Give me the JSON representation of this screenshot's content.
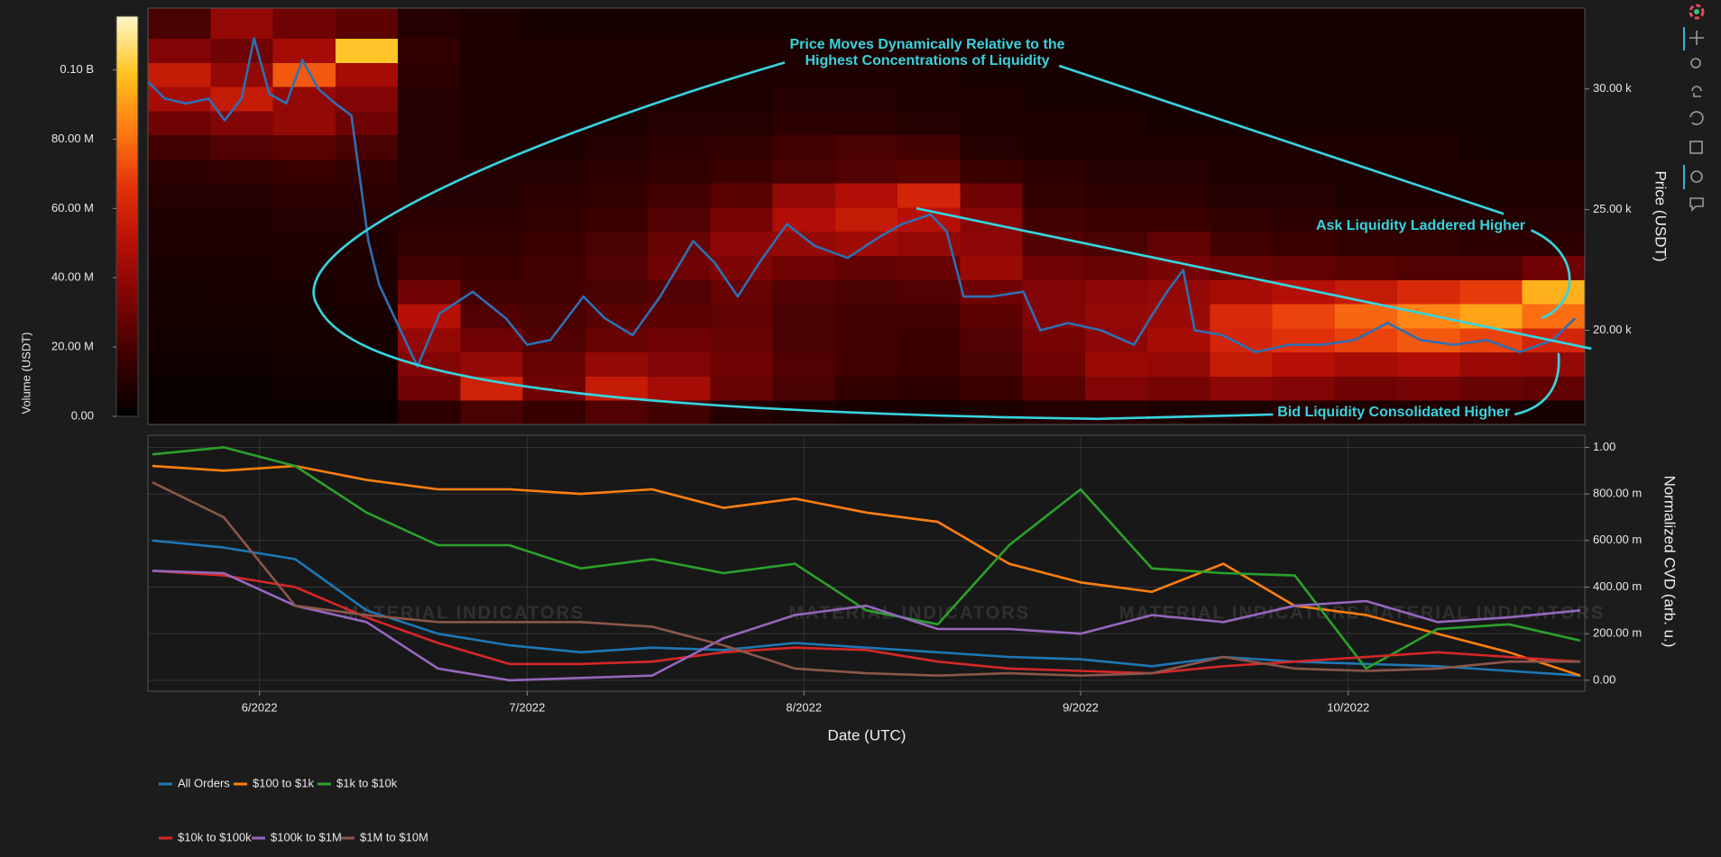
{
  "chart_data": [
    {
      "type": "heatmap",
      "xlim": [
        139.5,
        300.5
      ],
      "ylim": [
        16100,
        33350
      ],
      "yticks": [
        {
          "value": 20000,
          "label": "20.00 k"
        },
        {
          "value": 25000,
          "label": "25.00 k"
        },
        {
          "value": 30000,
          "label": "30.00 k"
        }
      ],
      "ylabel": "Price (USDT)",
      "x_bins": [
        139.5,
        146.5,
        153.5,
        160.5,
        167.5,
        174.5,
        181.5,
        188.5,
        195.5,
        202.5,
        209.5,
        216.5,
        223.5,
        230.5,
        237.5,
        244.5,
        251.5,
        258.5,
        265.5,
        272.5,
        279.5,
        286.5,
        293.5,
        300.5
      ],
      "y_bins": [
        16100,
        17100,
        18100,
        19100,
        20100,
        21100,
        22100,
        23100,
        24100,
        25100,
        26100,
        27100,
        28100,
        29100,
        30100,
        31100,
        32100,
        33350
      ],
      "z": [
        [
          3,
          3,
          3,
          3,
          12,
          20,
          15,
          22,
          18,
          10,
          8,
          6,
          6,
          8,
          10,
          10,
          8,
          8,
          10,
          8,
          8,
          8,
          6
        ],
        [
          3,
          3,
          4,
          4,
          30,
          58,
          30,
          55,
          45,
          28,
          20,
          14,
          12,
          16,
          24,
          35,
          32,
          38,
          35,
          30,
          32,
          28,
          26
        ],
        [
          4,
          4,
          5,
          5,
          35,
          40,
          28,
          40,
          35,
          30,
          22,
          18,
          16,
          20,
          30,
          42,
          40,
          55,
          50,
          45,
          48,
          42,
          40
        ],
        [
          5,
          5,
          6,
          6,
          40,
          30,
          22,
          28,
          30,
          28,
          20,
          18,
          16,
          22,
          32,
          38,
          45,
          60,
          65,
          70,
          75,
          70,
          60
        ],
        [
          6,
          6,
          6,
          7,
          50,
          22,
          20,
          24,
          25,
          26,
          20,
          18,
          18,
          25,
          35,
          40,
          42,
          62,
          70,
          78,
          85,
          92,
          80
        ],
        [
          6,
          7,
          7,
          8,
          30,
          18,
          18,
          20,
          22,
          28,
          22,
          20,
          22,
          30,
          35,
          38,
          40,
          45,
          50,
          55,
          62,
          68,
          95
        ],
        [
          7,
          7,
          8,
          8,
          18,
          16,
          18,
          22,
          30,
          34,
          30,
          26,
          28,
          42,
          30,
          28,
          32,
          28,
          26,
          24,
          22,
          22,
          30
        ],
        [
          8,
          8,
          9,
          9,
          14,
          14,
          16,
          20,
          28,
          38,
          40,
          44,
          40,
          38,
          22,
          20,
          26,
          18,
          16,
          14,
          14,
          12,
          12
        ],
        [
          8,
          9,
          10,
          10,
          12,
          12,
          14,
          16,
          22,
          32,
          48,
          55,
          50,
          36,
          18,
          16,
          16,
          14,
          12,
          10,
          10,
          10,
          10
        ],
        [
          10,
          10,
          12,
          12,
          10,
          10,
          12,
          14,
          18,
          24,
          40,
          48,
          60,
          30,
          14,
          12,
          12,
          10,
          10,
          8,
          8,
          8,
          8
        ],
        [
          12,
          14,
          16,
          14,
          10,
          10,
          10,
          12,
          14,
          16,
          20,
          22,
          24,
          16,
          12,
          10,
          10,
          8,
          8,
          8,
          8,
          8,
          8
        ],
        [
          18,
          22,
          24,
          20,
          10,
          8,
          8,
          10,
          12,
          14,
          18,
          20,
          18,
          10,
          8,
          8,
          8,
          8,
          8,
          8,
          8,
          6,
          6
        ],
        [
          30,
          35,
          40,
          30,
          10,
          8,
          8,
          8,
          10,
          10,
          12,
          12,
          10,
          8,
          8,
          8,
          6,
          6,
          6,
          6,
          6,
          6,
          6
        ],
        [
          45,
          55,
          40,
          35,
          10,
          8,
          8,
          8,
          8,
          8,
          10,
          10,
          8,
          8,
          6,
          6,
          6,
          6,
          6,
          6,
          6,
          6,
          6
        ],
        [
          55,
          40,
          75,
          45,
          12,
          8,
          8,
          8,
          8,
          8,
          8,
          8,
          8,
          6,
          6,
          6,
          6,
          6,
          6,
          6,
          6,
          6,
          6
        ],
        [
          35,
          30,
          45,
          100,
          14,
          8,
          8,
          8,
          8,
          8,
          8,
          8,
          8,
          6,
          6,
          6,
          6,
          6,
          6,
          6,
          6,
          6,
          6
        ],
        [
          20,
          40,
          30,
          25,
          10,
          8,
          6,
          6,
          6,
          6,
          6,
          6,
          6,
          6,
          6,
          6,
          6,
          6,
          6,
          6,
          6,
          6,
          6
        ]
      ],
      "colorbar": {
        "title": "Volume (USDT)",
        "lim": [
          0,
          115.5
        ],
        "ticks": [
          {
            "value": 0,
            "label": "0.00"
          },
          {
            "value": 20,
            "label": "20.00 M"
          },
          {
            "value": 40,
            "label": "40.00 M"
          },
          {
            "value": 60,
            "label": "60.00 M"
          },
          {
            "value": 80,
            "label": "80.00 M"
          },
          {
            "value": 100,
            "label": "0.10 B"
          }
        ],
        "colors": [
          "#000000",
          "#3c0000",
          "#7a0404",
          "#b50f06",
          "#e3320a",
          "#ff7a12",
          "#ffc21f",
          "#fff7c8"
        ]
      },
      "price": {
        "color": "#2f6fb3",
        "x": [
          139.5,
          141.4,
          143.8,
          146.3,
          148.1,
          150,
          151.4,
          153.1,
          155,
          156.8,
          158.6,
          160.5,
          162.3,
          164.2,
          165.4,
          169.7,
          172.2,
          175.9,
          179.6,
          182,
          184.6,
          188.3,
          190.7,
          193.8,
          196.9,
          200.6,
          203,
          205.6,
          208,
          211.1,
          214.2,
          217.9,
          221.6,
          224,
          227.2,
          229,
          230.9,
          234,
          237.6,
          239.5,
          242.6,
          246.3,
          250,
          251.8,
          253.7,
          255.5,
          256.8,
          259.9,
          263.6,
          267.3,
          271,
          274.7,
          278.4,
          282.1,
          285.8,
          289.5,
          293.2,
          296.9,
          299.4
        ],
        "values": [
          30300,
          29600,
          29400,
          29600,
          28700,
          29600,
          32100,
          29800,
          29400,
          31200,
          30000,
          29400,
          28900,
          23700,
          21900,
          18500,
          20700,
          21600,
          20500,
          19400,
          19600,
          21400,
          20500,
          19800,
          21400,
          23700,
          22800,
          21400,
          22800,
          24400,
          23500,
          23000,
          23900,
          24400,
          24800,
          24100,
          21400,
          21400,
          21600,
          20000,
          20300,
          20000,
          19400,
          20500,
          21600,
          22500,
          20000,
          19800,
          19100,
          19400,
          19400,
          19600,
          20300,
          19600,
          19400,
          19600,
          19100,
          19600,
          20500
        ]
      },
      "annotations": [
        "Price Moves Dynamically Relative to the",
        "Highest Concentrations of Liquidity",
        "Ask Liquidity Laddered Higher",
        "Bid Liquidity Consolidated Higher"
      ]
    },
    {
      "type": "line",
      "xlim": [
        139.5,
        300.5
      ],
      "xticks": [
        {
          "value": 152,
          "label": "6/2022"
        },
        {
          "value": 182,
          "label": "7/2022"
        },
        {
          "value": 213,
          "label": "8/2022"
        },
        {
          "value": 244,
          "label": "9/2022"
        },
        {
          "value": 274,
          "label": "10/2022"
        }
      ],
      "xlabel": "Date (UTC)",
      "ylim": [
        -0.047,
        1.052
      ],
      "yticks": [
        {
          "value": 0,
          "label": "0.00"
        },
        {
          "value": 0.2,
          "label": "200.00 m"
        },
        {
          "value": 0.4,
          "label": "400.00 m"
        },
        {
          "value": 0.6,
          "label": "600.00 m"
        },
        {
          "value": 0.8,
          "label": "800.00 m"
        },
        {
          "value": 1,
          "label": "1.00"
        }
      ],
      "ylabel": "Normalized CVD (arb. u.)",
      "grid": true,
      "watermark": "MATERIAL INDICATORS",
      "x": [
        140,
        148,
        156,
        164,
        172,
        180,
        188,
        196,
        204,
        212,
        220,
        228,
        236,
        244,
        252,
        260,
        268,
        276,
        284,
        292,
        300
      ],
      "series": [
        {
          "name": "All Orders",
          "color": "#1f77b4",
          "values": [
            0.6,
            0.57,
            0.52,
            0.3,
            0.2,
            0.15,
            0.12,
            0.14,
            0.13,
            0.16,
            0.14,
            0.12,
            0.1,
            0.09,
            0.06,
            0.1,
            0.08,
            0.07,
            0.06,
            0.04,
            0.02
          ]
        },
        {
          "name": "$100 to $1k",
          "color": "#ff7f0e",
          "values": [
            0.92,
            0.9,
            0.92,
            0.86,
            0.82,
            0.82,
            0.8,
            0.82,
            0.74,
            0.78,
            0.72,
            0.68,
            0.5,
            0.42,
            0.38,
            0.5,
            0.32,
            0.28,
            0.2,
            0.12,
            0.02
          ]
        },
        {
          "name": "$1k to $10k",
          "color": "#2ca02c",
          "values": [
            0.97,
            1.0,
            0.92,
            0.72,
            0.58,
            0.58,
            0.48,
            0.52,
            0.46,
            0.5,
            0.3,
            0.24,
            0.58,
            0.82,
            0.48,
            0.46,
            0.45,
            0.05,
            0.22,
            0.24,
            0.17
          ]
        },
        {
          "name": "$10k to $100k",
          "color": "#d62728",
          "values": [
            0.47,
            0.45,
            0.4,
            0.27,
            0.16,
            0.07,
            0.07,
            0.08,
            0.12,
            0.14,
            0.13,
            0.08,
            0.05,
            0.04,
            0.03,
            0.06,
            0.08,
            0.1,
            0.12,
            0.1,
            0.08
          ]
        },
        {
          "name": "$100k to $1M",
          "color": "#9467bd",
          "values": [
            0.47,
            0.46,
            0.32,
            0.25,
            0.05,
            0.0,
            0.01,
            0.02,
            0.18,
            0.28,
            0.32,
            0.22,
            0.22,
            0.2,
            0.28,
            0.25,
            0.32,
            0.34,
            0.25,
            0.27,
            0.3
          ]
        },
        {
          "name": "$1M to $10M",
          "color": "#8c564b",
          "values": [
            0.85,
            0.7,
            0.32,
            0.28,
            0.25,
            0.25,
            0.25,
            0.23,
            0.15,
            0.05,
            0.03,
            0.02,
            0.03,
            0.02,
            0.03,
            0.1,
            0.05,
            0.04,
            0.05,
            0.08,
            0.08
          ]
        }
      ]
    }
  ]
}
